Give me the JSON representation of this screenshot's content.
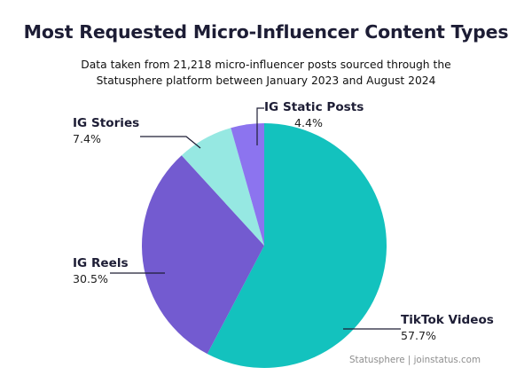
{
  "chart_data": {
    "type": "pie",
    "title": "Most Requested Micro-Influencer Content Types",
    "subtitle": "Data taken from 21,218 micro-influencer posts sourced through the Statusphere platform between January 2023 and August 2024",
    "slices": [
      {
        "name": "TikTok Videos",
        "value": 57.7,
        "label": "57.7%",
        "color": "#13c2be"
      },
      {
        "name": "IG Reels",
        "value": 30.5,
        "label": "30.5%",
        "color": "#735bd0"
      },
      {
        "name": "IG Stories",
        "value": 7.4,
        "label": "7.4%",
        "color": "#96e8e2"
      },
      {
        "name": "IG Static Posts",
        "value": 4.4,
        "label": "4.4%",
        "color": "#8c74ef"
      }
    ],
    "legend": "none",
    "source": "Statusphere | joinstatus.com"
  }
}
